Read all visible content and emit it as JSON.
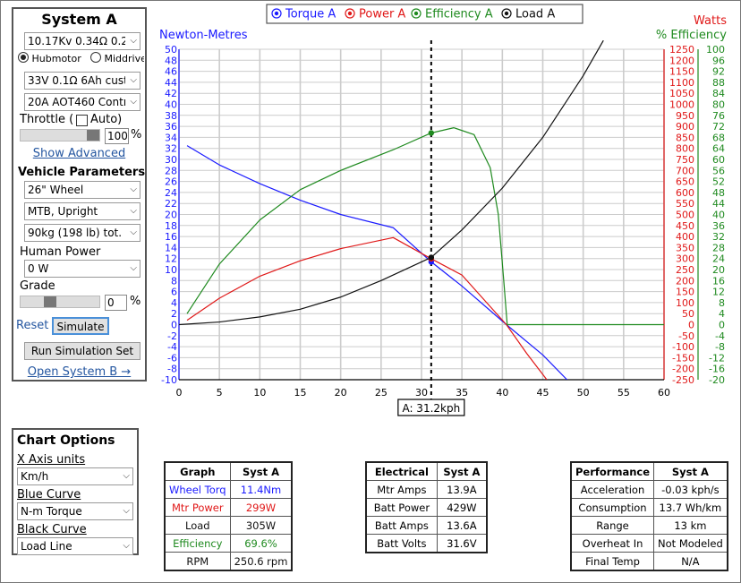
{
  "system_panel": {
    "title": "System A",
    "motor_select": "10.17Kv 0.34Ω 0.2n",
    "motor_type_options": [
      "Hubmotor",
      "Middrive"
    ],
    "motor_type_selected": "Hubmotor",
    "battery_select": "33V 0.1Ω 6Ah cust",
    "controller_select": "20A AOT460 Contr",
    "throttle_label": "Throttle (",
    "auto_label": "Auto)",
    "throttle_value": "100",
    "throttle_level": 1.0,
    "percent": "%",
    "show_advanced": "Show Advanced",
    "vehicle_heading": "Vehicle Parameters",
    "wheel_select": "26\"  Wheel",
    "position_select": "MTB, Upright",
    "weight_select": "90kg (198 lb) tot. v",
    "human_power_label": "Human Power",
    "human_power_select": "0 W",
    "grade_label": "Grade",
    "grade_value": "0",
    "grade_level": 0.0,
    "reset": "Reset",
    "simulate": "Simulate",
    "run_set": "Run Simulation Set",
    "open_b": "Open System B →"
  },
  "chart_options": {
    "title": "Chart Options",
    "x_axis_label": "X Axis units",
    "x_axis_select": "Km/h",
    "blue_label": "Blue Curve",
    "blue_select": "N-m Torque",
    "black_label": "Black Curve",
    "black_select": "Load Line"
  },
  "colors": {
    "torque": "#1a1aff",
    "power": "#e01818",
    "efficiency": "#1f8a1f",
    "load": "#111111",
    "grid": "#cccccc"
  },
  "chart_data": {
    "type": "line",
    "legend": [
      "Torque A",
      "Power A",
      "Efficiency A",
      "Load A"
    ],
    "legend_placement": "top-center",
    "left_axis_title": "Newton-Metres",
    "right_axis_title_1": "Watts",
    "right_axis_title_2": "% Efficiency",
    "xlim": [
      0,
      60
    ],
    "x_ticks": [
      0,
      5,
      10,
      15,
      20,
      25,
      30,
      35,
      40,
      45,
      50,
      55,
      60
    ],
    "left_ylim": [
      -10,
      50
    ],
    "watts_ylim": [
      -250,
      1250
    ],
    "eff_ylim": [
      -20,
      100
    ],
    "grid": true,
    "marker_x": 31.2,
    "marker_label": "A: 31.2kph",
    "series": [
      {
        "name": "Torque A",
        "axis": "left",
        "x": [
          1,
          5,
          10,
          15,
          20,
          26.5,
          31.2,
          35,
          40.5,
          45,
          48
        ],
        "y": [
          32.5,
          29,
          25.6,
          22.6,
          20,
          17.6,
          11.4,
          7,
          0,
          -5.5,
          -10
        ]
      },
      {
        "name": "Power A",
        "axis": "watts",
        "x": [
          1,
          5,
          10,
          15,
          20,
          26.5,
          31.2,
          35,
          40.5,
          43,
          45.5
        ],
        "y": [
          20,
          120,
          220,
          290,
          345,
          395,
          299,
          225,
          0,
          -130,
          -250
        ]
      },
      {
        "name": "Efficiency A",
        "axis": "eff",
        "x": [
          1,
          5,
          10,
          15,
          20,
          26.5,
          31.2,
          34,
          36.5,
          38.5,
          39.5,
          40.2,
          40.6,
          45,
          60
        ],
        "y": [
          4,
          22,
          38,
          49,
          56,
          63.5,
          69.6,
          71.5,
          69,
          57,
          40,
          15,
          0,
          0,
          0
        ]
      },
      {
        "name": "Load A",
        "axis": "watts",
        "x": [
          0,
          5,
          10,
          15,
          20,
          25,
          31.2,
          35,
          40,
          45,
          50,
          52.5
        ],
        "y": [
          0,
          12,
          35,
          70,
          125,
          200,
          305,
          430,
          620,
          850,
          1130,
          1290
        ]
      }
    ]
  },
  "graph_table": {
    "headers": [
      "Graph",
      "Syst A"
    ],
    "rows": [
      {
        "label": "Wheel Torq",
        "value": "11.4Nm",
        "color": "#1a1aff"
      },
      {
        "label": "Mtr Power",
        "value": "299W",
        "color": "#e01818"
      },
      {
        "label": "Load",
        "value": "305W",
        "color": "#111111"
      },
      {
        "label": "Efficiency",
        "value": "69.6%",
        "color": "#1f8a1f"
      },
      {
        "label": "RPM",
        "value": "250.6 rpm",
        "color": "#111111"
      }
    ]
  },
  "electrical_table": {
    "headers": [
      "Electrical",
      "Syst A"
    ],
    "rows": [
      {
        "label": "Mtr Amps",
        "value": "13.9A"
      },
      {
        "label": "Batt Power",
        "value": "429W"
      },
      {
        "label": "Batt Amps",
        "value": "13.6A"
      },
      {
        "label": "Batt Volts",
        "value": "31.6V"
      }
    ]
  },
  "performance_table": {
    "headers": [
      "Performance",
      "Syst A"
    ],
    "rows": [
      {
        "label": "Acceleration",
        "value": "-0.03 kph/s"
      },
      {
        "label": "Consumption",
        "value": "13.7 Wh/km"
      },
      {
        "label": "Range",
        "value": "13 km"
      },
      {
        "label": "Overheat In",
        "value": "Not Modeled"
      },
      {
        "label": "Final Temp",
        "value": "N/A"
      }
    ]
  }
}
